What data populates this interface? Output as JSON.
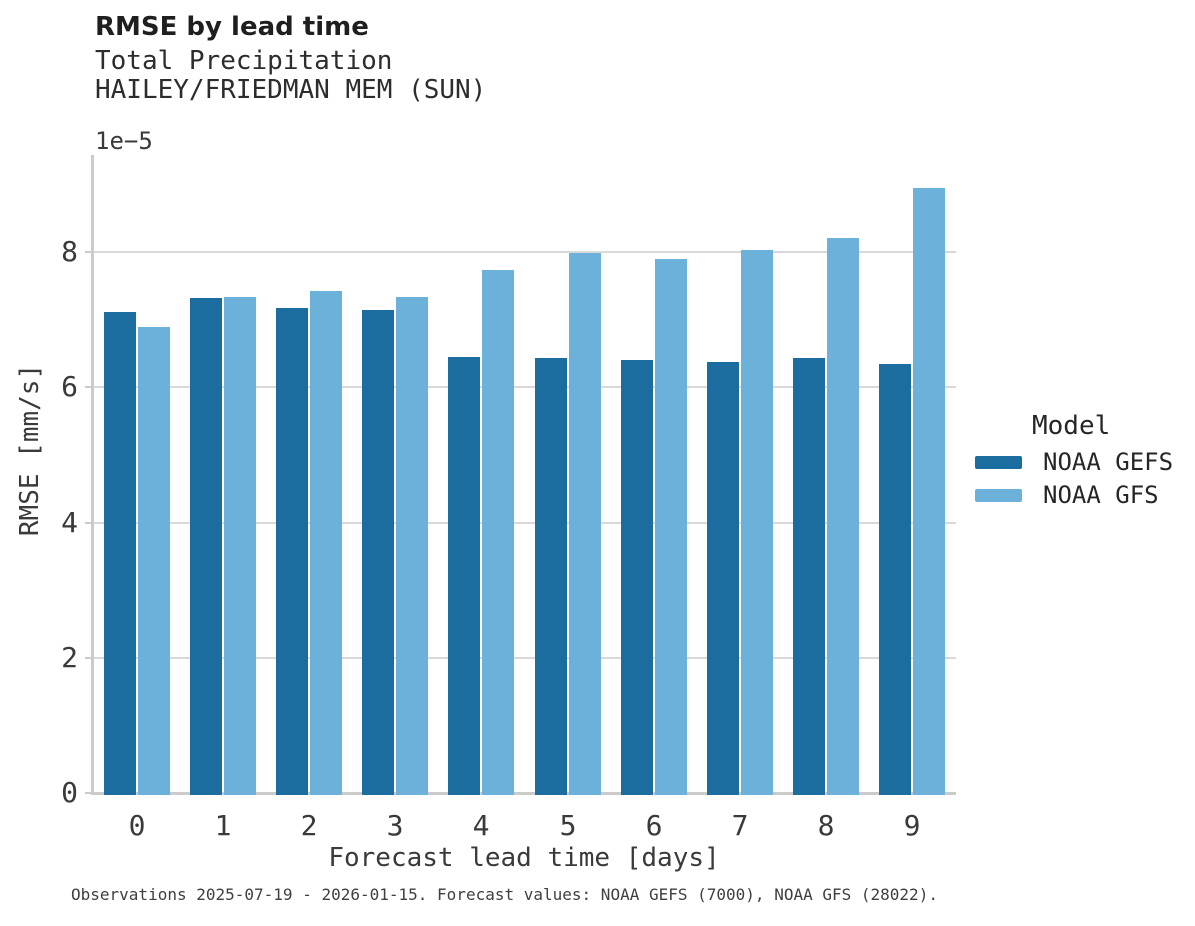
{
  "title": "RMSE by lead time",
  "subtitle_line1": "Total Precipitation",
  "subtitle_line2": "HAILEY/FRIEDMAN MEM (SUN)",
  "offset_label": "1e−5",
  "ylabel": "RMSE [mm/s]",
  "xlabel": "Forecast lead time [days]",
  "caption": "Observations 2025-07-19 - 2026-01-15. Forecast values: NOAA GEFS (7000), NOAA GFS (28022).",
  "legend": {
    "title": "Model",
    "entries": [
      {
        "label": "NOAA GEFS",
        "color": "#1a6d9e"
      },
      {
        "label": "NOAA GFS",
        "color": "#6cb1d9"
      }
    ]
  },
  "chart_data": {
    "type": "bar",
    "title": "RMSE by lead time",
    "subtitle": [
      "Total Precipitation",
      "HAILEY/FRIEDMAN MEM (SUN)"
    ],
    "xlabel": "Forecast lead time [days]",
    "ylabel": "RMSE [mm/s]",
    "y_offset_factor": "1e-5",
    "categories": [
      "0",
      "1",
      "2",
      "3",
      "4",
      "5",
      "6",
      "7",
      "8",
      "9"
    ],
    "series": [
      {
        "name": "NOAA GEFS",
        "color": "#1a6d9e",
        "values": [
          7.12,
          7.32,
          7.17,
          7.15,
          6.45,
          6.43,
          6.41,
          6.38,
          6.44,
          6.34
        ]
      },
      {
        "name": "NOAA GFS",
        "color": "#6cb1d9",
        "values": [
          6.9,
          7.33,
          7.42,
          7.33,
          7.73,
          7.99,
          7.9,
          8.03,
          8.21,
          8.95
        ]
      }
    ],
    "ylim": [
      0,
      9.4
    ],
    "yticks": [
      0,
      2,
      4,
      6,
      8
    ],
    "grid": "horizontal",
    "legend_position": "right",
    "legend_title": "Model"
  }
}
